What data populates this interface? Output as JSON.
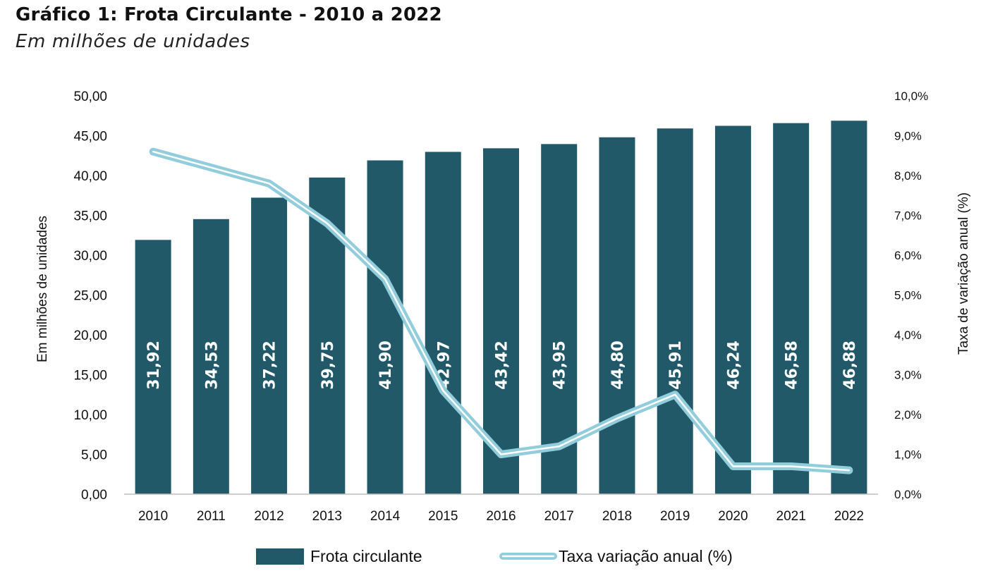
{
  "header": {
    "title": "Gráfico 1: Frota Circulante - 2010 a 2022",
    "subtitle": "Em milhões de unidades"
  },
  "colors": {
    "bar": "#215968",
    "line_outer": "#92CDDC",
    "line_inner": "#ffffff",
    "text": "#111111"
  },
  "chart_data": {
    "type": "bar",
    "title": "Gráfico 1: Frota Circulante - 2010 a 2022",
    "subtitle": "Em milhões de unidades",
    "categories": [
      "2010",
      "2011",
      "2012",
      "2013",
      "2014",
      "2015",
      "2016",
      "2017",
      "2018",
      "2019",
      "2020",
      "2021",
      "2022"
    ],
    "series": [
      {
        "name": "Frota circulante",
        "type": "bar",
        "axis": "left",
        "values": [
          31.92,
          34.53,
          37.22,
          39.75,
          41.9,
          42.97,
          43.42,
          43.95,
          44.8,
          45.91,
          46.24,
          46.58,
          46.88
        ],
        "labels": [
          "31,92",
          "34,53",
          "37,22",
          "39,75",
          "41,90",
          "42,97",
          "43,42",
          "43,95",
          "44,80",
          "45,91",
          "46,24",
          "46,58",
          "46,88"
        ]
      },
      {
        "name": "Taxa variação anual (%)",
        "type": "line",
        "axis": "right",
        "values": [
          8.6,
          8.2,
          7.8,
          6.8,
          5.4,
          2.6,
          1.0,
          1.2,
          1.9,
          2.5,
          0.7,
          0.7,
          0.6
        ]
      }
    ],
    "ylabel": "Em milhões de unidades",
    "y2label": "Taxa de variação anual (%)",
    "ylim": [
      0,
      50
    ],
    "y2lim": [
      0,
      10
    ],
    "yticks": [
      "0,00",
      "5,00",
      "10,00",
      "15,00",
      "20,00",
      "25,00",
      "30,00",
      "35,00",
      "40,00",
      "45,00",
      "50,00"
    ],
    "y2ticks": [
      "0,0%",
      "1,0%",
      "2,0%",
      "3,0%",
      "4,0%",
      "5,0%",
      "6,0%",
      "7,0%",
      "8,0%",
      "9,0%",
      "10,0%"
    ],
    "legend_position": "bottom",
    "grid": false
  }
}
